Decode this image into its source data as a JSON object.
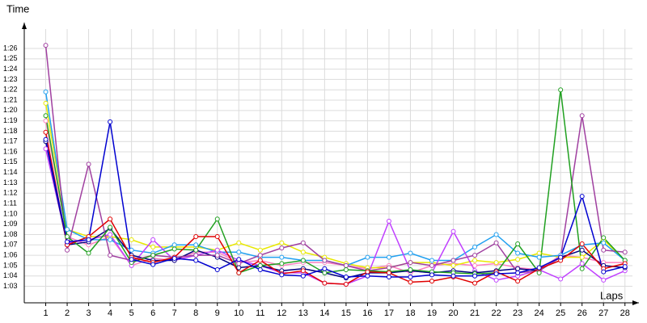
{
  "chart_data": {
    "type": "line",
    "y_title": "Time",
    "x_title": "Laps",
    "grid": true,
    "x": [
      1,
      2,
      3,
      4,
      5,
      6,
      7,
      8,
      9,
      10,
      11,
      12,
      13,
      14,
      15,
      16,
      17,
      18,
      19,
      20,
      21,
      22,
      23,
      24,
      25,
      26,
      27,
      28
    ],
    "xlim": [
      0,
      28.65
    ],
    "xticks": [
      1,
      2,
      3,
      4,
      5,
      6,
      7,
      8,
      9,
      10,
      11,
      12,
      13,
      14,
      15,
      16,
      17,
      18,
      19,
      20,
      21,
      22,
      23,
      24,
      25,
      26,
      27,
      28
    ],
    "ylim": [
      61.4,
      88.5
    ],
    "yticks": [
      {
        "value": 63,
        "label": "1:03"
      },
      {
        "value": 64,
        "label": "1:04"
      },
      {
        "value": 65,
        "label": "1:05"
      },
      {
        "value": 66,
        "label": "1:06"
      },
      {
        "value": 67,
        "label": "1:07"
      },
      {
        "value": 68,
        "label": "1:08"
      },
      {
        "value": 69,
        "label": "1:09"
      },
      {
        "value": 70,
        "label": "1:10"
      },
      {
        "value": 71,
        "label": "1:11"
      },
      {
        "value": 72,
        "label": "1:12"
      },
      {
        "value": 73,
        "label": "1:13"
      },
      {
        "value": 74,
        "label": "1:14"
      },
      {
        "value": 75,
        "label": "1:15"
      },
      {
        "value": 76,
        "label": "1:16"
      },
      {
        "value": 77,
        "label": "1:17"
      },
      {
        "value": 78,
        "label": "1:18"
      },
      {
        "value": 79,
        "label": "1:19"
      },
      {
        "value": 80,
        "label": "1:20"
      },
      {
        "value": 81,
        "label": "1:21"
      },
      {
        "value": 82,
        "label": "1:22"
      },
      {
        "value": 83,
        "label": "1:23"
      },
      {
        "value": 84,
        "label": "1:24"
      },
      {
        "value": 85,
        "label": "1:25"
      },
      {
        "value": 86,
        "label": "1:26"
      }
    ],
    "series": [
      {
        "color": "#ff80c0",
        "values": [
          79,
          67.8,
          67.0,
          67.8,
          65.0,
          65.7,
          65.5,
          66.3,
          66.3,
          65.3,
          65.5,
          65.0,
          65.3,
          65.3,
          65.0,
          64.7,
          65.0,
          64.3,
          65.0,
          65.2,
          65.0,
          65.2,
          64.8,
          64.6,
          66.0,
          65.8,
          65.3,
          65.3
        ]
      },
      {
        "color": "#e8e800",
        "values": [
          80.7,
          68.5,
          67.8,
          67.8,
          67.5,
          66.8,
          66.8,
          66.8,
          66.5,
          67.2,
          66.5,
          67.2,
          66.3,
          65.8,
          65.2,
          64.8,
          64.8,
          65.3,
          65.3,
          65.0,
          65.5,
          65.3,
          65.6,
          66.2,
          65.8,
          65.8,
          67.5,
          65.5
        ]
      },
      {
        "color": "#20a0f0",
        "values": [
          81.8,
          68.5,
          67.5,
          67.5,
          66.5,
          66.2,
          67.0,
          67.0,
          66.3,
          66.3,
          65.8,
          65.8,
          65.5,
          65.5,
          65.0,
          65.8,
          65.8,
          66.2,
          65.5,
          65.5,
          66.8,
          68.0,
          66.2,
          65.8,
          66.0,
          67.0,
          67.2,
          65.5
        ]
      },
      {
        "color": "#c040ff",
        "values": [
          76.3,
          67.2,
          67.5,
          68.0,
          65.0,
          67.5,
          65.5,
          66.0,
          66.5,
          65.5,
          65.0,
          64.3,
          64.3,
          63.3,
          63.2,
          64.0,
          69.3,
          64.5,
          64.3,
          68.3,
          64.5,
          63.6,
          64.0,
          64.6,
          63.7,
          65.2,
          63.6,
          64.5
        ]
      },
      {
        "color": "#000080",
        "values": [
          77.0,
          67.0,
          67.3,
          68.6,
          66.0,
          65.5,
          65.5,
          66.5,
          65.8,
          64.8,
          65.0,
          64.5,
          64.7,
          64.3,
          63.8,
          64.3,
          64.3,
          64.5,
          64.3,
          64.5,
          64.3,
          64.5,
          64.7,
          64.5,
          65.8,
          66.5,
          65.0,
          64.8
        ]
      },
      {
        "color": "#a040a0",
        "values": [
          86.3,
          66.5,
          74.8,
          66.0,
          65.5,
          66.0,
          65.8,
          66.0,
          66.0,
          65.2,
          66.0,
          66.7,
          67.2,
          65.5,
          65.0,
          64.5,
          64.8,
          65.3,
          65.0,
          65.5,
          66.0,
          67.2,
          64.3,
          64.5,
          65.8,
          79.5,
          66.5,
          66.3
        ]
      },
      {
        "color": "#20a020",
        "values": [
          79.5,
          67.8,
          66.2,
          68.7,
          65.3,
          66.0,
          66.6,
          66.5,
          69.5,
          64.3,
          65.0,
          65.2,
          65.5,
          64.3,
          64.6,
          64.5,
          64.4,
          64.6,
          64.4,
          64.3,
          64.2,
          64.3,
          67.1,
          64.3,
          82.0,
          64.7,
          67.7,
          65.5
        ]
      },
      {
        "color": "#e00000",
        "values": [
          77.9,
          67,
          67.8,
          69.5,
          65.8,
          65.3,
          65.8,
          67.8,
          67.8,
          64.3,
          65.5,
          64.2,
          64.5,
          63.3,
          63.2,
          64.4,
          64.3,
          63.4,
          63.5,
          63.9,
          63.3,
          64.4,
          63.5,
          64.7,
          65.5,
          67.1,
          64.7,
          65.2
        ]
      },
      {
        "color": "#0000d0",
        "values": [
          77.2,
          67.3,
          67.5,
          78.9,
          65.6,
          65.1,
          65.7,
          65.5,
          64.6,
          65.6,
          64.6,
          64.1,
          64.0,
          64.7,
          63.9,
          64.0,
          63.9,
          63.9,
          64.1,
          64.0,
          64.0,
          64.2,
          64.3,
          64.8,
          65.8,
          71.7,
          64.4,
          64.9
        ]
      }
    ]
  }
}
